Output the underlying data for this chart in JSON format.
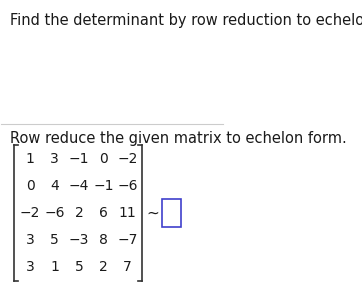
{
  "title": "Find the determinant by row reduction to echelon form.",
  "subtitle": "Row reduce the given matrix to echelon form.",
  "matrix": [
    [
      "1",
      "3",
      "−1",
      "0",
      "−2"
    ],
    [
      "0",
      "4",
      "−4",
      "−1",
      "−6"
    ],
    [
      "−2",
      "−6",
      "2",
      "6",
      "11"
    ],
    [
      "3",
      "5",
      "−3",
      "8",
      "−7"
    ],
    [
      "3",
      "1",
      "5",
      "2",
      "7"
    ]
  ],
  "bg_color": "#ffffff",
  "text_color": "#1a1a1a",
  "title_fontsize": 10.5,
  "subtitle_fontsize": 10.5,
  "matrix_fontsize": 10,
  "divider_color": "#cccccc",
  "bracket_color": "#333333",
  "box_color": "#4040cc"
}
